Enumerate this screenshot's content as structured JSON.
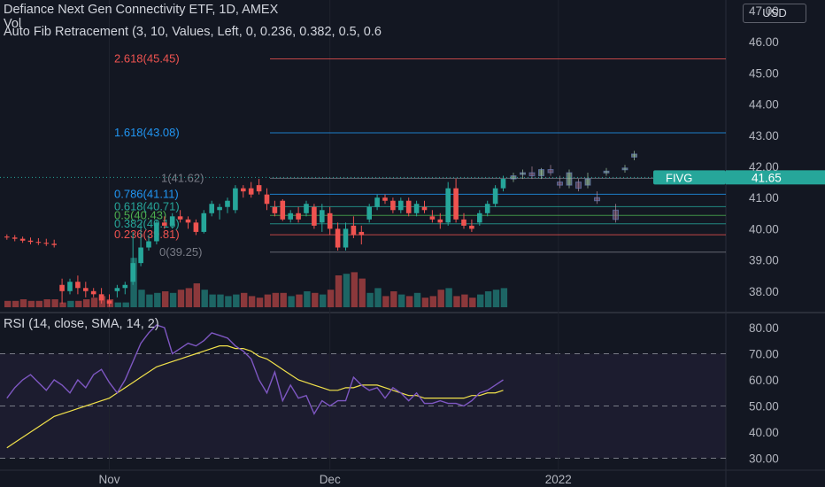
{
  "header": {
    "title": "Defiance Next Gen Connectivity ETF, 1D, AMEX",
    "vol_label": "Vol",
    "fib_label": "Auto Fib Retracement (3, 10, Values, Left, 0, 0.236, 0.382, 0.5, 0.6",
    "currency": "USD"
  },
  "price_tag": {
    "symbol": "FIVG",
    "value": "41.65"
  },
  "colors": {
    "up": "#26a69a",
    "down": "#ef5350",
    "rsi": "#7e57c2",
    "rsi_ma": "#f2e24b"
  },
  "chart_data": [
    {
      "type": "candlestick",
      "title": "Defiance Next Gen Connectivity ETF, 1D, AMEX",
      "ylim": [
        37.5,
        47.2
      ],
      "y_ticks": [
        "47.00",
        "46.00",
        "45.00",
        "44.00",
        "43.00",
        "42.00",
        "41.00",
        "40.00",
        "39.00",
        "38.00"
      ],
      "x_ticks": [
        "Nov",
        "Dec",
        "2022"
      ],
      "candles": [
        {
          "o": 39.75,
          "h": 39.82,
          "l": 39.65,
          "c": 39.72
        },
        {
          "o": 39.72,
          "h": 39.8,
          "l": 39.6,
          "c": 39.68
        },
        {
          "o": 39.68,
          "h": 39.75,
          "l": 39.55,
          "c": 39.62
        },
        {
          "o": 39.62,
          "h": 39.72,
          "l": 39.5,
          "c": 39.58
        },
        {
          "o": 39.58,
          "h": 39.7,
          "l": 39.48,
          "c": 39.55
        },
        {
          "o": 39.55,
          "h": 39.68,
          "l": 39.45,
          "c": 39.52
        },
        {
          "o": 39.52,
          "h": 39.65,
          "l": 39.4,
          "c": 39.48
        },
        {
          "o": 38.2,
          "h": 38.4,
          "l": 37.6,
          "c": 38.0
        },
        {
          "o": 38.0,
          "h": 38.4,
          "l": 37.9,
          "c": 38.3
        },
        {
          "o": 38.3,
          "h": 38.5,
          "l": 37.9,
          "c": 38.1
        },
        {
          "o": 38.1,
          "h": 38.3,
          "l": 37.8,
          "c": 38.0
        },
        {
          "o": 38.0,
          "h": 38.1,
          "l": 37.8,
          "c": 37.9
        },
        {
          "o": 37.9,
          "h": 38.1,
          "l": 37.6,
          "c": 37.7
        },
        {
          "o": 37.7,
          "h": 37.9,
          "l": 37.5,
          "c": 37.6
        },
        {
          "o": 38.0,
          "h": 38.2,
          "l": 37.8,
          "c": 38.1
        },
        {
          "o": 38.1,
          "h": 38.3,
          "l": 37.9,
          "c": 38.2
        },
        {
          "o": 38.3,
          "h": 39.9,
          "l": 38.2,
          "c": 38.9
        },
        {
          "o": 38.9,
          "h": 40.2,
          "l": 38.8,
          "c": 39.4
        },
        {
          "o": 39.4,
          "h": 39.8,
          "l": 39.3,
          "c": 39.6
        },
        {
          "o": 39.6,
          "h": 40.3,
          "l": 39.5,
          "c": 40.2
        },
        {
          "o": 40.2,
          "h": 40.4,
          "l": 40.0,
          "c": 40.1
        },
        {
          "o": 40.1,
          "h": 40.5,
          "l": 40.0,
          "c": 40.4
        },
        {
          "o": 40.4,
          "h": 40.6,
          "l": 40.2,
          "c": 40.3
        },
        {
          "o": 40.3,
          "h": 40.4,
          "l": 40.0,
          "c": 40.2
        },
        {
          "o": 40.2,
          "h": 40.3,
          "l": 39.8,
          "c": 39.9
        },
        {
          "o": 39.9,
          "h": 40.6,
          "l": 39.85,
          "c": 40.5
        },
        {
          "o": 40.5,
          "h": 40.9,
          "l": 40.4,
          "c": 40.8
        },
        {
          "o": 40.6,
          "h": 40.8,
          "l": 40.3,
          "c": 40.7
        },
        {
          "o": 40.7,
          "h": 41.0,
          "l": 40.5,
          "c": 40.9
        },
        {
          "o": 40.6,
          "h": 41.4,
          "l": 40.5,
          "c": 41.3
        },
        {
          "o": 41.3,
          "h": 41.4,
          "l": 41.0,
          "c": 41.2
        },
        {
          "o": 41.3,
          "h": 41.5,
          "l": 41.0,
          "c": 41.1
        },
        {
          "o": 41.4,
          "h": 41.6,
          "l": 41.1,
          "c": 41.2
        },
        {
          "o": 41.1,
          "h": 41.3,
          "l": 40.6,
          "c": 40.8
        },
        {
          "o": 40.7,
          "h": 40.9,
          "l": 40.4,
          "c": 40.5
        },
        {
          "o": 40.9,
          "h": 40.95,
          "l": 40.25,
          "c": 40.3
        },
        {
          "o": 40.3,
          "h": 40.6,
          "l": 40.2,
          "c": 40.5
        },
        {
          "o": 40.5,
          "h": 40.7,
          "l": 40.2,
          "c": 40.3
        },
        {
          "o": 40.5,
          "h": 40.9,
          "l": 40.4,
          "c": 40.8
        },
        {
          "o": 40.7,
          "h": 40.8,
          "l": 40.0,
          "c": 40.1
        },
        {
          "o": 40.2,
          "h": 40.8,
          "l": 39.9,
          "c": 40.6
        },
        {
          "o": 40.5,
          "h": 40.7,
          "l": 39.8,
          "c": 40.0
        },
        {
          "o": 40.0,
          "h": 40.2,
          "l": 39.3,
          "c": 39.4
        },
        {
          "o": 39.4,
          "h": 40.2,
          "l": 39.3,
          "c": 40.0
        },
        {
          "o": 40.1,
          "h": 40.4,
          "l": 39.7,
          "c": 39.8
        },
        {
          "o": 39.9,
          "h": 40.1,
          "l": 39.5,
          "c": 39.8
        },
        {
          "o": 40.3,
          "h": 40.8,
          "l": 40.2,
          "c": 40.7
        },
        {
          "o": 40.7,
          "h": 41.1,
          "l": 40.6,
          "c": 41.0
        },
        {
          "o": 41.0,
          "h": 41.1,
          "l": 40.8,
          "c": 40.9
        },
        {
          "o": 40.9,
          "h": 41.0,
          "l": 40.5,
          "c": 40.6
        },
        {
          "o": 40.6,
          "h": 41.0,
          "l": 40.5,
          "c": 40.9
        },
        {
          "o": 40.9,
          "h": 41.0,
          "l": 40.4,
          "c": 40.5
        },
        {
          "o": 40.5,
          "h": 40.9,
          "l": 40.4,
          "c": 40.8
        },
        {
          "o": 40.7,
          "h": 40.9,
          "l": 40.5,
          "c": 40.6
        },
        {
          "o": 40.4,
          "h": 40.6,
          "l": 40.2,
          "c": 40.3
        },
        {
          "o": 40.3,
          "h": 40.5,
          "l": 40.0,
          "c": 40.2
        },
        {
          "o": 40.2,
          "h": 41.5,
          "l": 40.1,
          "c": 41.3
        },
        {
          "o": 41.3,
          "h": 41.6,
          "l": 40.2,
          "c": 40.3
        },
        {
          "o": 40.3,
          "h": 40.5,
          "l": 40.0,
          "c": 40.1
        },
        {
          "o": 40.1,
          "h": 40.3,
          "l": 39.9,
          "c": 40.0
        },
        {
          "o": 40.2,
          "h": 40.6,
          "l": 40.1,
          "c": 40.5
        },
        {
          "o": 40.5,
          "h": 40.9,
          "l": 40.4,
          "c": 40.8
        },
        {
          "o": 40.8,
          "h": 41.4,
          "l": 40.7,
          "c": 41.3
        },
        {
          "o": 41.3,
          "h": 41.7,
          "l": 41.2,
          "c": 41.6
        }
      ],
      "projection": [
        {
          "o": 41.6,
          "h": 41.8,
          "l": 41.5,
          "c": 41.7
        },
        {
          "o": 41.75,
          "h": 41.9,
          "l": 41.6,
          "c": 41.8
        },
        {
          "o": 41.8,
          "h": 42.0,
          "l": 41.6,
          "c": 41.7
        },
        {
          "o": 41.7,
          "h": 41.95,
          "l": 41.6,
          "c": 41.9
        },
        {
          "o": 41.9,
          "h": 42.05,
          "l": 41.7,
          "c": 41.8
        },
        {
          "o": 41.5,
          "h": 41.7,
          "l": 41.3,
          "c": 41.4
        },
        {
          "o": 41.4,
          "h": 41.9,
          "l": 41.3,
          "c": 41.8
        },
        {
          "o": 41.5,
          "h": 41.6,
          "l": 41.2,
          "c": 41.3
        },
        {
          "o": 41.4,
          "h": 41.8,
          "l": 41.3,
          "c": 41.6
        },
        {
          "o": 41.0,
          "h": 41.2,
          "l": 40.8,
          "c": 40.9
        },
        {
          "o": 41.8,
          "h": 41.95,
          "l": 41.7,
          "c": 41.85
        },
        {
          "o": 40.6,
          "h": 40.8,
          "l": 40.2,
          "c": 40.3
        },
        {
          "o": 41.9,
          "h": 42.05,
          "l": 41.8,
          "c": 41.95
        },
        {
          "o": 42.3,
          "h": 42.5,
          "l": 42.2,
          "c": 42.4
        }
      ],
      "volume": [
        4,
        4,
        5,
        4,
        4,
        5,
        5,
        3,
        4,
        4,
        5,
        6,
        7,
        5,
        3,
        3,
        31,
        11,
        8,
        9,
        10,
        9,
        11,
        12,
        15,
        11,
        8,
        8,
        7,
        8,
        9,
        7,
        6,
        8,
        9,
        9,
        7,
        8,
        10,
        9,
        8,
        11,
        20,
        21,
        22,
        18,
        9,
        12,
        7,
        10,
        8,
        7,
        9,
        6,
        7,
        11,
        12,
        7,
        8,
        6,
        8,
        10,
        11,
        12
      ],
      "fib_levels": [
        {
          "ratio": "2.618",
          "price": "45.45"
        },
        {
          "ratio": "1.618",
          "price": "43.08"
        },
        {
          "ratio": "1",
          "price": "41.62"
        },
        {
          "ratio": "0.786",
          "price": "41.11"
        },
        {
          "ratio": "0.618",
          "price": "40.71"
        },
        {
          "ratio": "0.5",
          "price": "40.43"
        },
        {
          "ratio": "0.382",
          "price": "40.16"
        },
        {
          "ratio": "0.236",
          "price": "39.81"
        },
        {
          "ratio": "0",
          "price": "39.25"
        }
      ]
    },
    {
      "type": "line",
      "title": "RSI (14, close, SMA, 14, 2)",
      "ylim": [
        25,
        86
      ],
      "y_ticks": [
        "80.00",
        "70.00",
        "60.00",
        "50.00",
        "40.00",
        "30.00"
      ],
      "band": [
        30,
        70
      ],
      "series": [
        {
          "name": "RSI",
          "values": [
            53,
            57,
            60,
            62,
            59,
            56,
            60,
            58,
            55,
            60,
            57,
            62,
            64,
            59,
            55,
            60,
            67,
            74,
            78,
            81,
            80,
            70,
            72,
            74,
            73,
            75,
            78,
            77,
            76,
            73,
            71,
            68,
            60,
            55,
            63,
            52,
            58,
            53,
            54,
            47,
            52,
            50,
            52,
            52,
            61,
            58,
            56,
            57,
            53,
            57,
            55,
            52,
            55,
            51,
            51,
            52,
            51,
            51,
            50,
            52,
            55,
            56,
            58,
            60
          ]
        },
        {
          "name": "SMA",
          "values": [
            34,
            36,
            38,
            40,
            42,
            44,
            46,
            47,
            48,
            49,
            50,
            51,
            52,
            53,
            55,
            57,
            59,
            61,
            63,
            65,
            66,
            67,
            68,
            69,
            70,
            71,
            72,
            73,
            73,
            72,
            72,
            71,
            69,
            68,
            66,
            64,
            62,
            60,
            59,
            58,
            57,
            56,
            56,
            57,
            57,
            58,
            58,
            58,
            57,
            56,
            55,
            54,
            54,
            53,
            53,
            53,
            53,
            53,
            53,
            54,
            54,
            55,
            55,
            56
          ]
        }
      ]
    }
  ]
}
